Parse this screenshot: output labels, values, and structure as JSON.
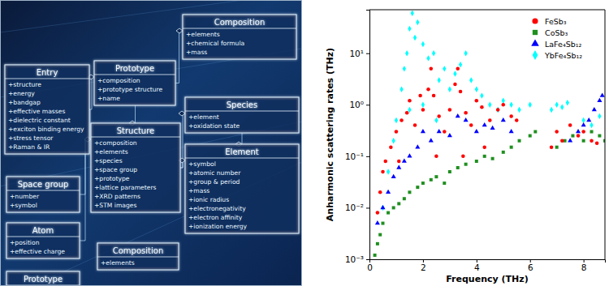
{
  "diagram": {
    "boxes": [
      {
        "title": "Composition",
        "fields": [
          "+elements",
          "+chemical formula",
          "+mass"
        ]
      },
      {
        "title": "Entry",
        "fields": [
          "+structure",
          "+energy",
          "+bandgap",
          "+effective masses",
          "+dielectric constant",
          "+exciton binding energy",
          "+stress tensor",
          "+Raman & IR"
        ]
      },
      {
        "title": "Prototype",
        "fields": [
          "+composition",
          "+prototype structure",
          "+name"
        ]
      },
      {
        "title": "Species",
        "fields": [
          "+element",
          "+oxidation state"
        ]
      },
      {
        "title": "Space group",
        "fields": [
          "+number",
          "+symbol"
        ]
      },
      {
        "title": "Structure",
        "fields": [
          "+composition",
          "+elements",
          "+species",
          "+space group",
          "+prototype",
          "+lattice parameters",
          "+XRD patterns",
          "+STM images"
        ]
      },
      {
        "title": "Element",
        "fields": [
          "+symbol",
          "+atomic number",
          "+group & period",
          "+mass",
          "+ionic radius",
          "+electronegativity",
          "+electron affinity",
          "+ionization energy"
        ]
      },
      {
        "title": "Atom",
        "fields": [
          "+position",
          "+effective charge"
        ]
      },
      {
        "title": "Prototype",
        "fields": []
      },
      {
        "title": "Composition",
        "fields": [
          "+elements"
        ]
      }
    ]
  },
  "chart_data": {
    "type": "scatter",
    "x_label": "Frequency (THz)",
    "y_label": "Anharmonic scattering rates (THz)",
    "xlim": [
      0,
      8.8
    ],
    "xticks": [
      0,
      2,
      4,
      6,
      8
    ],
    "ylim": [
      0.001,
      70
    ],
    "yticks": [
      {
        "value": 0.001,
        "label": "10⁻³"
      },
      {
        "value": 0.01,
        "label": "10⁻²"
      },
      {
        "value": 0.1,
        "label": "10⁻¹"
      },
      {
        "value": 1,
        "label": "10⁰"
      },
      {
        "value": 10,
        "label": "10¹"
      }
    ],
    "log": "y",
    "grid": false,
    "legend": "upper right",
    "series": [
      {
        "name": "FeSb₃",
        "color": "#ff0000",
        "marker": "circle",
        "x": [
          0.3,
          0.4,
          0.5,
          0.6,
          0.8,
          1.0,
          1.2,
          1.4,
          1.5,
          1.7,
          1.9,
          2.0,
          2.2,
          2.3,
          2.4,
          2.6,
          2.8,
          3.0,
          3.2,
          3.3,
          3.4,
          3.6,
          3.8,
          4.0,
          4.2,
          4.5,
          4.8,
          5.0,
          5.3,
          5.5,
          6.8,
          7.0,
          7.2,
          7.5,
          7.8,
          8.0,
          8.3,
          8.5,
          1.1,
          2.5,
          3.5,
          4.3
        ],
        "values": [
          0.008,
          0.02,
          0.05,
          0.08,
          0.15,
          0.3,
          0.5,
          0.7,
          1.2,
          0.4,
          1.5,
          0.8,
          2.0,
          5.0,
          1.5,
          0.6,
          0.3,
          0.8,
          2.5,
          5.0,
          1.8,
          0.7,
          0.4,
          1.2,
          0.9,
          0.5,
          0.8,
          1.0,
          0.6,
          0.5,
          0.15,
          0.3,
          0.2,
          0.4,
          0.25,
          0.3,
          0.2,
          0.18,
          0.08,
          0.1,
          0.1,
          0.15
        ]
      },
      {
        "name": "CoSb₃",
        "color": "#1f8f1f",
        "marker": "square",
        "x": [
          0.2,
          0.3,
          0.4,
          0.5,
          0.7,
          0.9,
          1.1,
          1.3,
          1.5,
          1.8,
          2.0,
          2.3,
          2.5,
          2.8,
          3.0,
          3.3,
          3.6,
          4.0,
          4.3,
          4.6,
          5.0,
          5.3,
          5.6,
          6.0,
          6.2,
          7.0,
          7.3,
          7.6,
          8.0,
          8.3,
          8.6,
          8.8
        ],
        "values": [
          0.0012,
          0.002,
          0.003,
          0.005,
          0.008,
          0.01,
          0.012,
          0.015,
          0.02,
          0.025,
          0.03,
          0.035,
          0.04,
          0.03,
          0.05,
          0.06,
          0.07,
          0.08,
          0.1,
          0.09,
          0.12,
          0.15,
          0.2,
          0.25,
          0.3,
          0.15,
          0.2,
          0.25,
          0.2,
          0.3,
          0.25,
          0.2
        ]
      },
      {
        "name": "LaFe₄Sb₁₂",
        "color": "#0000ff",
        "marker": "triangle",
        "x": [
          0.3,
          0.5,
          0.7,
          0.9,
          1.1,
          1.3,
          1.5,
          1.8,
          2.0,
          2.3,
          2.6,
          3.0,
          3.3,
          3.6,
          4.0,
          4.3,
          4.6,
          5.0,
          5.3,
          7.5,
          7.8,
          8.0,
          8.2,
          8.4,
          8.6,
          8.7
        ],
        "values": [
          0.005,
          0.01,
          0.02,
          0.04,
          0.06,
          0.08,
          0.1,
          0.15,
          0.3,
          0.2,
          0.3,
          0.25,
          0.6,
          0.5,
          0.3,
          0.4,
          0.35,
          0.5,
          0.3,
          0.2,
          0.3,
          0.4,
          0.5,
          0.8,
          1.2,
          1.5
        ]
      },
      {
        "name": "YbFe₄Sb₁₂",
        "color": "#00ffff",
        "marker": "diamond",
        "x": [
          0.5,
          0.7,
          0.9,
          1.0,
          1.2,
          1.3,
          1.4,
          1.5,
          1.6,
          1.7,
          1.8,
          2.0,
          2.2,
          2.4,
          2.6,
          2.8,
          3.0,
          3.2,
          3.4,
          3.6,
          3.8,
          4.0,
          4.2,
          4.5,
          4.8,
          5.0,
          5.3,
          5.6,
          6.0,
          6.8,
          7.0,
          7.2,
          7.4,
          8.0,
          8.3,
          8.6,
          1.5,
          2.0,
          2.5
        ],
        "values": [
          0.01,
          0.05,
          0.2,
          0.5,
          2,
          5,
          10,
          30,
          60,
          20,
          40,
          15,
          8,
          10,
          3,
          5,
          2,
          4,
          6,
          10,
          3,
          2,
          1.5,
          1,
          0.8,
          1.2,
          1,
          0.8,
          1,
          0.8,
          1,
          0.9,
          1.1,
          0.5,
          0.4,
          0.6,
          0.8,
          1,
          0.5
        ]
      }
    ]
  }
}
